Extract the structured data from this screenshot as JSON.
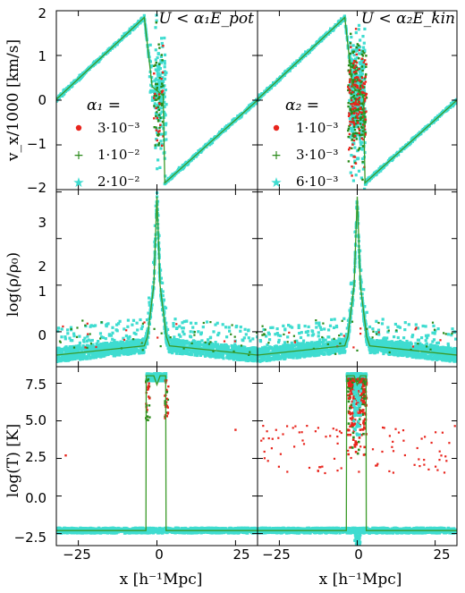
{
  "colors": {
    "red": "#e8251d",
    "green": "#2a8a1a",
    "cyan": "#3fdcd0",
    "line": "#3a9a28"
  },
  "chart_data": {
    "type": "scatter",
    "x_range": [
      -32,
      32
    ],
    "x_ticks": [
      -25,
      0,
      25
    ],
    "x_tick_labels": [
      "−25",
      "0",
      "25"
    ],
    "x_label": "x [h⁻¹Mpc]",
    "columns": [
      {
        "annotation": "U < α₁E_pot",
        "legend_title": "α₁ =",
        "legend": [
          "3·10⁻³",
          "1·10⁻²",
          "2·10⁻²"
        ]
      },
      {
        "annotation": "U < α₂E_kin",
        "legend_title": "α₂ =",
        "legend": [
          "1·10⁻³",
          "3·10⁻³",
          "6·10⁻³"
        ]
      }
    ],
    "rows": [
      {
        "name": "velocity",
        "y_label": "v_x/1000 [km/s]",
        "y_range": [
          -2,
          2
        ],
        "y_ticks": [
          -2,
          -1,
          0,
          1,
          2
        ],
        "y_tick_labels": [
          "−2",
          "−1",
          "0",
          "1",
          "2"
        ],
        "reference_line": [
          [
            -32,
            0.02
          ],
          [
            -4,
            1.85
          ],
          [
            -1.5,
            0.3
          ],
          [
            2,
            0.1
          ],
          [
            2.5,
            -1.85
          ],
          [
            32,
            0.0
          ]
        ]
      },
      {
        "name": "density",
        "y_label": "log(ρ/ρ₀)",
        "y_range": [
          -0.75,
          3.05
        ],
        "y_ticks": [
          0,
          1,
          2,
          3
        ],
        "y_tick_labels": [
          "0",
          "1",
          "2",
          "3"
        ],
        "reference_line": [
          [
            -32,
            -0.5
          ],
          [
            -4,
            -0.3
          ],
          [
            -3,
            -0.1
          ],
          [
            -1,
            1.0
          ],
          [
            0,
            2.9
          ],
          [
            1,
            1.0
          ],
          [
            3,
            -0.1
          ],
          [
            4,
            -0.3
          ],
          [
            32,
            -0.5
          ]
        ]
      },
      {
        "name": "temperature",
        "y_label": "log(T) [K]",
        "y_range": [
          -3.3,
          8.6
        ],
        "y_ticks": [
          -2.5,
          0.0,
          2.5,
          5.0,
          7.5
        ],
        "y_tick_labels": [
          "−2.5",
          "0.0",
          "2.5",
          "5.0",
          "7.5"
        ],
        "reference_line": [
          [
            -32,
            -2.3
          ],
          [
            -3.5,
            -2.3
          ],
          [
            -3.4,
            8.0
          ],
          [
            -1,
            8.0
          ],
          [
            0,
            7.4
          ],
          [
            1,
            8.0
          ],
          [
            2.8,
            8.0
          ],
          [
            2.9,
            -2.3
          ],
          [
            32,
            -2.3
          ]
        ]
      }
    ]
  }
}
